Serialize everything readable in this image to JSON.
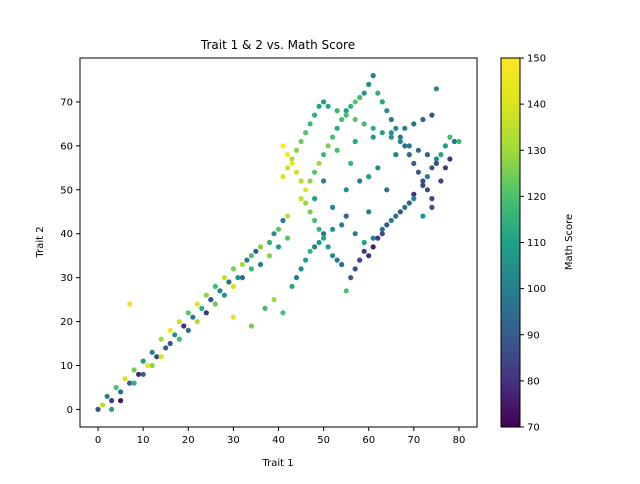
{
  "chart_data": {
    "type": "scatter",
    "title": "Trait 1 & 2 vs. Math Score",
    "xlabel": "Trait 1",
    "ylabel": "Trait 2",
    "xlim": [
      -4,
      84
    ],
    "ylim": [
      -4,
      80
    ],
    "xticks": [
      0,
      10,
      20,
      30,
      40,
      50,
      60,
      70,
      80
    ],
    "yticks": [
      0,
      10,
      20,
      30,
      40,
      50,
      60,
      70
    ],
    "grid": false,
    "legend": "none",
    "colorbar": {
      "label": "Math Score",
      "colormap": "viridis",
      "min": 70,
      "max": 150,
      "ticks": [
        70,
        80,
        90,
        100,
        110,
        120,
        130,
        140,
        150
      ]
    },
    "series": [
      {
        "points": [
          [
            0,
            0,
            88
          ],
          [
            1,
            1,
            135
          ],
          [
            2,
            3,
            100
          ],
          [
            3,
            2,
            82
          ],
          [
            4,
            5,
            120
          ],
          [
            5,
            4,
            95
          ],
          [
            6,
            7,
            140
          ],
          [
            7,
            6,
            90
          ],
          [
            8,
            9,
            125
          ],
          [
            9,
            8,
            78
          ],
          [
            10,
            11,
            110
          ],
          [
            11,
            10,
            145
          ],
          [
            12,
            13,
            100
          ],
          [
            13,
            12,
            85
          ],
          [
            14,
            16,
            130
          ],
          [
            15,
            14,
            92
          ],
          [
            16,
            18,
            148
          ],
          [
            17,
            17,
            105
          ],
          [
            18,
            20,
            138
          ],
          [
            19,
            19,
            80
          ],
          [
            20,
            22,
            122
          ],
          [
            21,
            21,
            98
          ],
          [
            22,
            24,
            142
          ],
          [
            23,
            23,
            112
          ],
          [
            24,
            26,
            128
          ],
          [
            25,
            25,
            87
          ],
          [
            26,
            28,
            118
          ],
          [
            27,
            27,
            102
          ],
          [
            28,
            30,
            135
          ],
          [
            29,
            29,
            94
          ],
          [
            30,
            32,
            125
          ],
          [
            31,
            30,
            108
          ],
          [
            32,
            33,
            132
          ],
          [
            33,
            34,
            100
          ],
          [
            34,
            35,
            120
          ],
          [
            35,
            36,
            90
          ],
          [
            36,
            37,
            127
          ],
          [
            38,
            38,
            115
          ],
          [
            39,
            40,
            105
          ],
          [
            40,
            41,
            122
          ],
          [
            41,
            43,
            98
          ],
          [
            42,
            44,
            135
          ],
          [
            3,
            0,
            110
          ],
          [
            5,
            2,
            75
          ],
          [
            8,
            6,
            115
          ],
          [
            10,
            8,
            92
          ],
          [
            12,
            10,
            128
          ],
          [
            14,
            12,
            140
          ],
          [
            16,
            15,
            88
          ],
          [
            18,
            16,
            118
          ],
          [
            20,
            18,
            96
          ],
          [
            22,
            20,
            133
          ],
          [
            24,
            22,
            81
          ],
          [
            26,
            24,
            124
          ],
          [
            28,
            26,
            107
          ],
          [
            30,
            28,
            139
          ],
          [
            32,
            30,
            93
          ],
          [
            34,
            32,
            117
          ],
          [
            36,
            33,
            101
          ],
          [
            38,
            35,
            126
          ],
          [
            40,
            37,
            109
          ],
          [
            42,
            39,
            121
          ],
          [
            7,
            24,
            145
          ],
          [
            30,
            21,
            143
          ],
          [
            34,
            19,
            125
          ],
          [
            37,
            23,
            118
          ],
          [
            39,
            25,
            130
          ],
          [
            41,
            22,
            120
          ],
          [
            43,
            28,
            112
          ],
          [
            44,
            30,
            98
          ],
          [
            45,
            32,
            105
          ],
          [
            46,
            34,
            110
          ],
          [
            47,
            36,
            115
          ],
          [
            48,
            37,
            100
          ],
          [
            49,
            38,
            108
          ],
          [
            50,
            40,
            96
          ],
          [
            52,
            41,
            104
          ],
          [
            54,
            42,
            100
          ],
          [
            55,
            44,
            92
          ],
          [
            57,
            40,
            98
          ],
          [
            59,
            38,
            110
          ],
          [
            61,
            39,
            102
          ],
          [
            63,
            41,
            95
          ],
          [
            65,
            43,
            100
          ],
          [
            67,
            45,
            88
          ],
          [
            69,
            47,
            92
          ],
          [
            70,
            49,
            80
          ],
          [
            72,
            51,
            85
          ],
          [
            73,
            53,
            99
          ],
          [
            74,
            55,
            90
          ],
          [
            75,
            57,
            104
          ],
          [
            76,
            58,
            112
          ],
          [
            77,
            60,
            108
          ],
          [
            78,
            62,
            118
          ],
          [
            79,
            61,
            96
          ],
          [
            80,
            61,
            118
          ],
          [
            45,
            48,
            135
          ],
          [
            46,
            50,
            140
          ],
          [
            47,
            52,
            128
          ],
          [
            48,
            54,
            122
          ],
          [
            49,
            56,
            131
          ],
          [
            50,
            58,
            118
          ],
          [
            51,
            60,
            126
          ],
          [
            52,
            62,
            120
          ],
          [
            53,
            64,
            113
          ],
          [
            54,
            66,
            119
          ],
          [
            55,
            68,
            110
          ],
          [
            56,
            69,
            115
          ],
          [
            57,
            70,
            121
          ],
          [
            58,
            71,
            118
          ],
          [
            59,
            72,
            107
          ],
          [
            60,
            74,
            105
          ],
          [
            61,
            76,
            100
          ],
          [
            62,
            72,
            114
          ],
          [
            63,
            70,
            111
          ],
          [
            64,
            68,
            104
          ],
          [
            65,
            66,
            99
          ],
          [
            66,
            64,
            102
          ],
          [
            67,
            62,
            97
          ],
          [
            68,
            60,
            95
          ],
          [
            69,
            58,
            93
          ],
          [
            70,
            56,
            91
          ],
          [
            71,
            54,
            89
          ],
          [
            72,
            52,
            87
          ],
          [
            73,
            50,
            86
          ],
          [
            74,
            48,
            85
          ],
          [
            75,
            73,
            103
          ],
          [
            41,
            53,
            142
          ],
          [
            42,
            55,
            137
          ],
          [
            43,
            57,
            132
          ],
          [
            44,
            59,
            127
          ],
          [
            45,
            61,
            124
          ],
          [
            46,
            63,
            121
          ],
          [
            47,
            65,
            117
          ],
          [
            48,
            67,
            114
          ],
          [
            49,
            69,
            111
          ],
          [
            50,
            70,
            108
          ],
          [
            51,
            69,
            112
          ],
          [
            53,
            68,
            116
          ],
          [
            55,
            67,
            119
          ],
          [
            57,
            66,
            121
          ],
          [
            59,
            65,
            118
          ],
          [
            61,
            64,
            114
          ],
          [
            63,
            63,
            110
          ],
          [
            65,
            62,
            106
          ],
          [
            67,
            61,
            102
          ],
          [
            69,
            60,
            98
          ],
          [
            71,
            59,
            94
          ],
          [
            73,
            58,
            90
          ],
          [
            75,
            56,
            86
          ],
          [
            41,
            60,
            150
          ],
          [
            42,
            58,
            146
          ],
          [
            43,
            56,
            143
          ],
          [
            44,
            54,
            138
          ],
          [
            45,
            52,
            134
          ],
          [
            46,
            47,
            129
          ],
          [
            47,
            45,
            125
          ],
          [
            48,
            43,
            120
          ],
          [
            49,
            41,
            116
          ],
          [
            50,
            39,
            112
          ],
          [
            51,
            37,
            108
          ],
          [
            52,
            35,
            104
          ],
          [
            53,
            34,
            100
          ],
          [
            54,
            33,
            96
          ],
          [
            55,
            27,
            120
          ],
          [
            56,
            30,
            92
          ],
          [
            57,
            32,
            88
          ],
          [
            58,
            34,
            84
          ],
          [
            59,
            36,
            80
          ],
          [
            60,
            35,
            78
          ],
          [
            61,
            37,
            76
          ],
          [
            62,
            39,
            82
          ],
          [
            63,
            40,
            86
          ],
          [
            64,
            42,
            90
          ],
          [
            66,
            44,
            94
          ],
          [
            68,
            46,
            98
          ],
          [
            70,
            48,
            102
          ],
          [
            72,
            44,
            106
          ],
          [
            74,
            46,
            88
          ],
          [
            76,
            52,
            84
          ],
          [
            77,
            55,
            82
          ],
          [
            78,
            57,
            80
          ],
          [
            60,
            45,
            100
          ],
          [
            55,
            50,
            105
          ],
          [
            50,
            52,
            100
          ],
          [
            48,
            48,
            110
          ],
          [
            52,
            46,
            102
          ],
          [
            58,
            52,
            98
          ],
          [
            62,
            55,
            104
          ],
          [
            66,
            58,
            100
          ],
          [
            64,
            50,
            95
          ],
          [
            60,
            53,
            110
          ],
          [
            56,
            56,
            115
          ],
          [
            53,
            59,
            120
          ],
          [
            57,
            61,
            112
          ],
          [
            61,
            62,
            108
          ],
          [
            65,
            63,
            104
          ],
          [
            68,
            64,
            100
          ],
          [
            70,
            65,
            96
          ],
          [
            72,
            66,
            92
          ],
          [
            74,
            67,
            88
          ]
        ]
      }
    ]
  }
}
